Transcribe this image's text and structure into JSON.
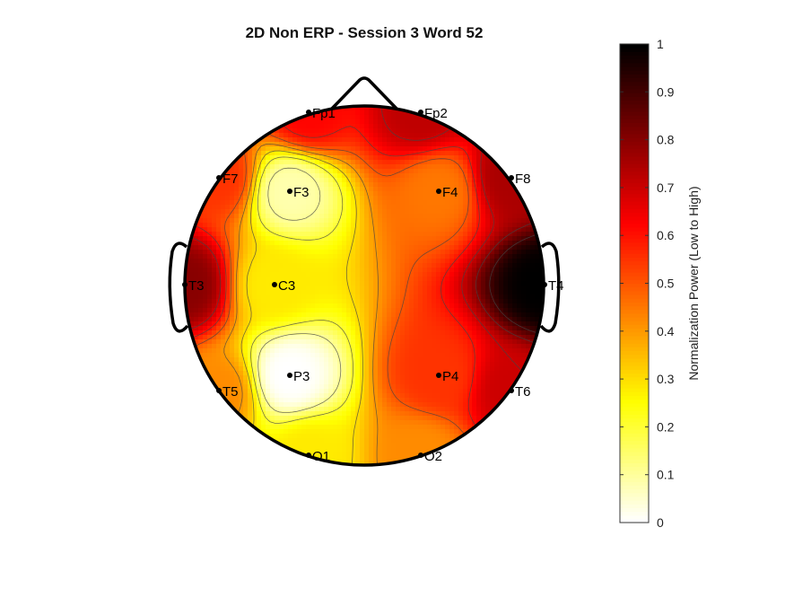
{
  "chart_data": {
    "type": "heatmap",
    "subtype": "eeg-topographic-map",
    "title": "2D Non ERP - Session 3 Word 52",
    "electrodes": [
      {
        "name": "Fp1",
        "value": 0.62
      },
      {
        "name": "Fp2",
        "value": 0.72
      },
      {
        "name": "F7",
        "value": 0.55
      },
      {
        "name": "F3",
        "value": 0.08
      },
      {
        "name": "F4",
        "value": 0.45
      },
      {
        "name": "F8",
        "value": 0.75
      },
      {
        "name": "T3",
        "value": 0.8
      },
      {
        "name": "C3",
        "value": 0.28
      },
      {
        "name": "T4",
        "value": 1.0
      },
      {
        "name": "T5",
        "value": 0.42
      },
      {
        "name": "P3",
        "value": 0.0
      },
      {
        "name": "P4",
        "value": 0.55
      },
      {
        "name": "T6",
        "value": 0.7
      },
      {
        "name": "O1",
        "value": 0.28
      },
      {
        "name": "O2",
        "value": 0.42
      }
    ],
    "colorbar": {
      "label": "Normalization Power (Low to High)",
      "colormap": "hot (reversed)",
      "range": [
        0,
        1
      ],
      "ticks": [
        "0",
        "0.1",
        "0.2",
        "0.3",
        "0.4",
        "0.5",
        "0.6",
        "0.7",
        "0.8",
        "0.9",
        "1"
      ]
    },
    "contour_levels": [
      0.1,
      0.2,
      0.3,
      0.4,
      0.5,
      0.6,
      0.7,
      0.8,
      0.9
    ]
  }
}
